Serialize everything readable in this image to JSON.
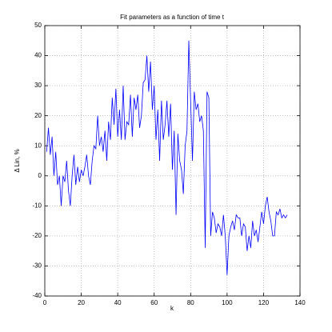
{
  "chart_data": {
    "type": "line",
    "title": "Fit parameters as a function of time t",
    "xlabel": "k",
    "ylabel": "Δ Lin, %",
    "x": [
      1,
      2,
      3,
      4,
      5,
      6,
      7,
      8,
      9,
      10,
      11,
      12,
      13,
      14,
      15,
      16,
      17,
      18,
      19,
      20,
      21,
      22,
      23,
      24,
      25,
      26,
      27,
      28,
      29,
      30,
      31,
      32,
      33,
      34,
      35,
      36,
      37,
      38,
      39,
      40,
      41,
      42,
      43,
      44,
      45,
      46,
      47,
      48,
      49,
      50,
      51,
      52,
      53,
      54,
      55,
      56,
      57,
      58,
      59,
      60,
      61,
      62,
      63,
      64,
      65,
      66,
      67,
      68,
      69,
      70,
      71,
      72,
      73,
      74,
      75,
      76,
      77,
      78,
      79,
      80,
      81,
      82,
      83,
      84,
      85,
      86,
      87,
      88,
      89,
      90,
      91,
      92,
      93,
      94,
      95,
      96,
      97,
      98,
      99,
      100,
      101,
      102,
      103,
      104,
      105,
      106,
      107,
      108,
      109,
      110,
      111,
      112,
      113,
      114,
      115,
      116,
      117,
      118,
      119,
      120,
      121,
      122,
      123,
      124,
      125,
      126,
      127,
      128,
      129,
      130,
      131,
      132,
      133
    ],
    "series": [
      {
        "color": "#0000ff",
        "values": [
          8,
          16,
          7,
          13,
          0,
          8,
          -3,
          0,
          -10,
          0,
          -2,
          5,
          -5,
          -10,
          0,
          7,
          -3,
          3,
          -2,
          2,
          0,
          3,
          7,
          0,
          -3,
          5,
          10,
          9,
          20,
          10,
          13,
          8,
          15,
          5,
          18,
          12,
          26,
          17,
          29,
          13,
          22,
          12,
          30,
          12,
          18,
          17,
          27,
          13,
          26,
          22,
          27,
          16,
          20,
          31,
          32,
          40,
          28,
          38,
          22,
          30,
          12,
          22,
          5,
          25,
          12,
          17,
          25,
          13,
          24,
          2,
          15,
          -13,
          14,
          5,
          2,
          -6,
          10,
          15,
          45,
          25,
          5,
          28,
          22,
          24,
          18,
          20,
          15,
          -24,
          28,
          26,
          -20,
          -12,
          -14,
          -19,
          -16,
          -17,
          -20,
          -13,
          -20,
          -33,
          -20,
          -17,
          -15,
          -18,
          -13,
          -14,
          -14,
          -20,
          -16,
          -17,
          -25,
          -20,
          -24,
          -15,
          -20,
          -18,
          -22,
          -17,
          -12,
          -16,
          -10,
          -7,
          -12,
          -15,
          -20,
          -20,
          -12,
          -13,
          -11,
          -14,
          -13,
          -14,
          -13
        ]
      }
    ],
    "xlim": [
      0,
      140
    ],
    "xticks": [
      0,
      20,
      40,
      60,
      80,
      100,
      120,
      140
    ],
    "ylim": [
      -40,
      50
    ],
    "yticks": [
      -40,
      -30,
      -20,
      -10,
      0,
      10,
      20,
      30,
      40,
      50
    ],
    "grid": true
  }
}
